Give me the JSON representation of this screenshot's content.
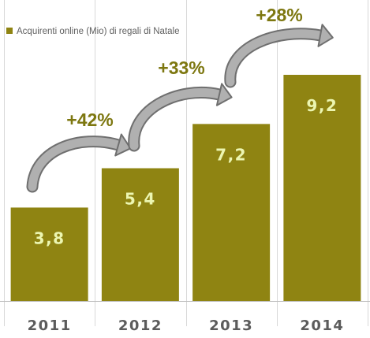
{
  "chart_data": {
    "type": "bar",
    "categories": [
      "2011",
      "2012",
      "2013",
      "2014"
    ],
    "series": [
      {
        "name": "Acquirenti online (Mio) di regali di Natale",
        "values": [
          3.8,
          5.4,
          7.2,
          9.2
        ]
      }
    ],
    "value_labels": [
      "3,8",
      "5,4",
      "7,2",
      "9,2"
    ],
    "growth_labels": [
      "+42%",
      "+33%",
      "+28%"
    ],
    "ylim": [
      0,
      10
    ],
    "grid": true,
    "legend_position": "top-left",
    "colors": {
      "bar": "#8f8412",
      "value_label": "#ecf6b1",
      "growth_label": "#7d7710",
      "arrow_fill": "#b0b0b0",
      "arrow_edge": "#6f6f6f",
      "axis_label": "#5b5b5b",
      "grid": "#d8d8d8"
    }
  }
}
